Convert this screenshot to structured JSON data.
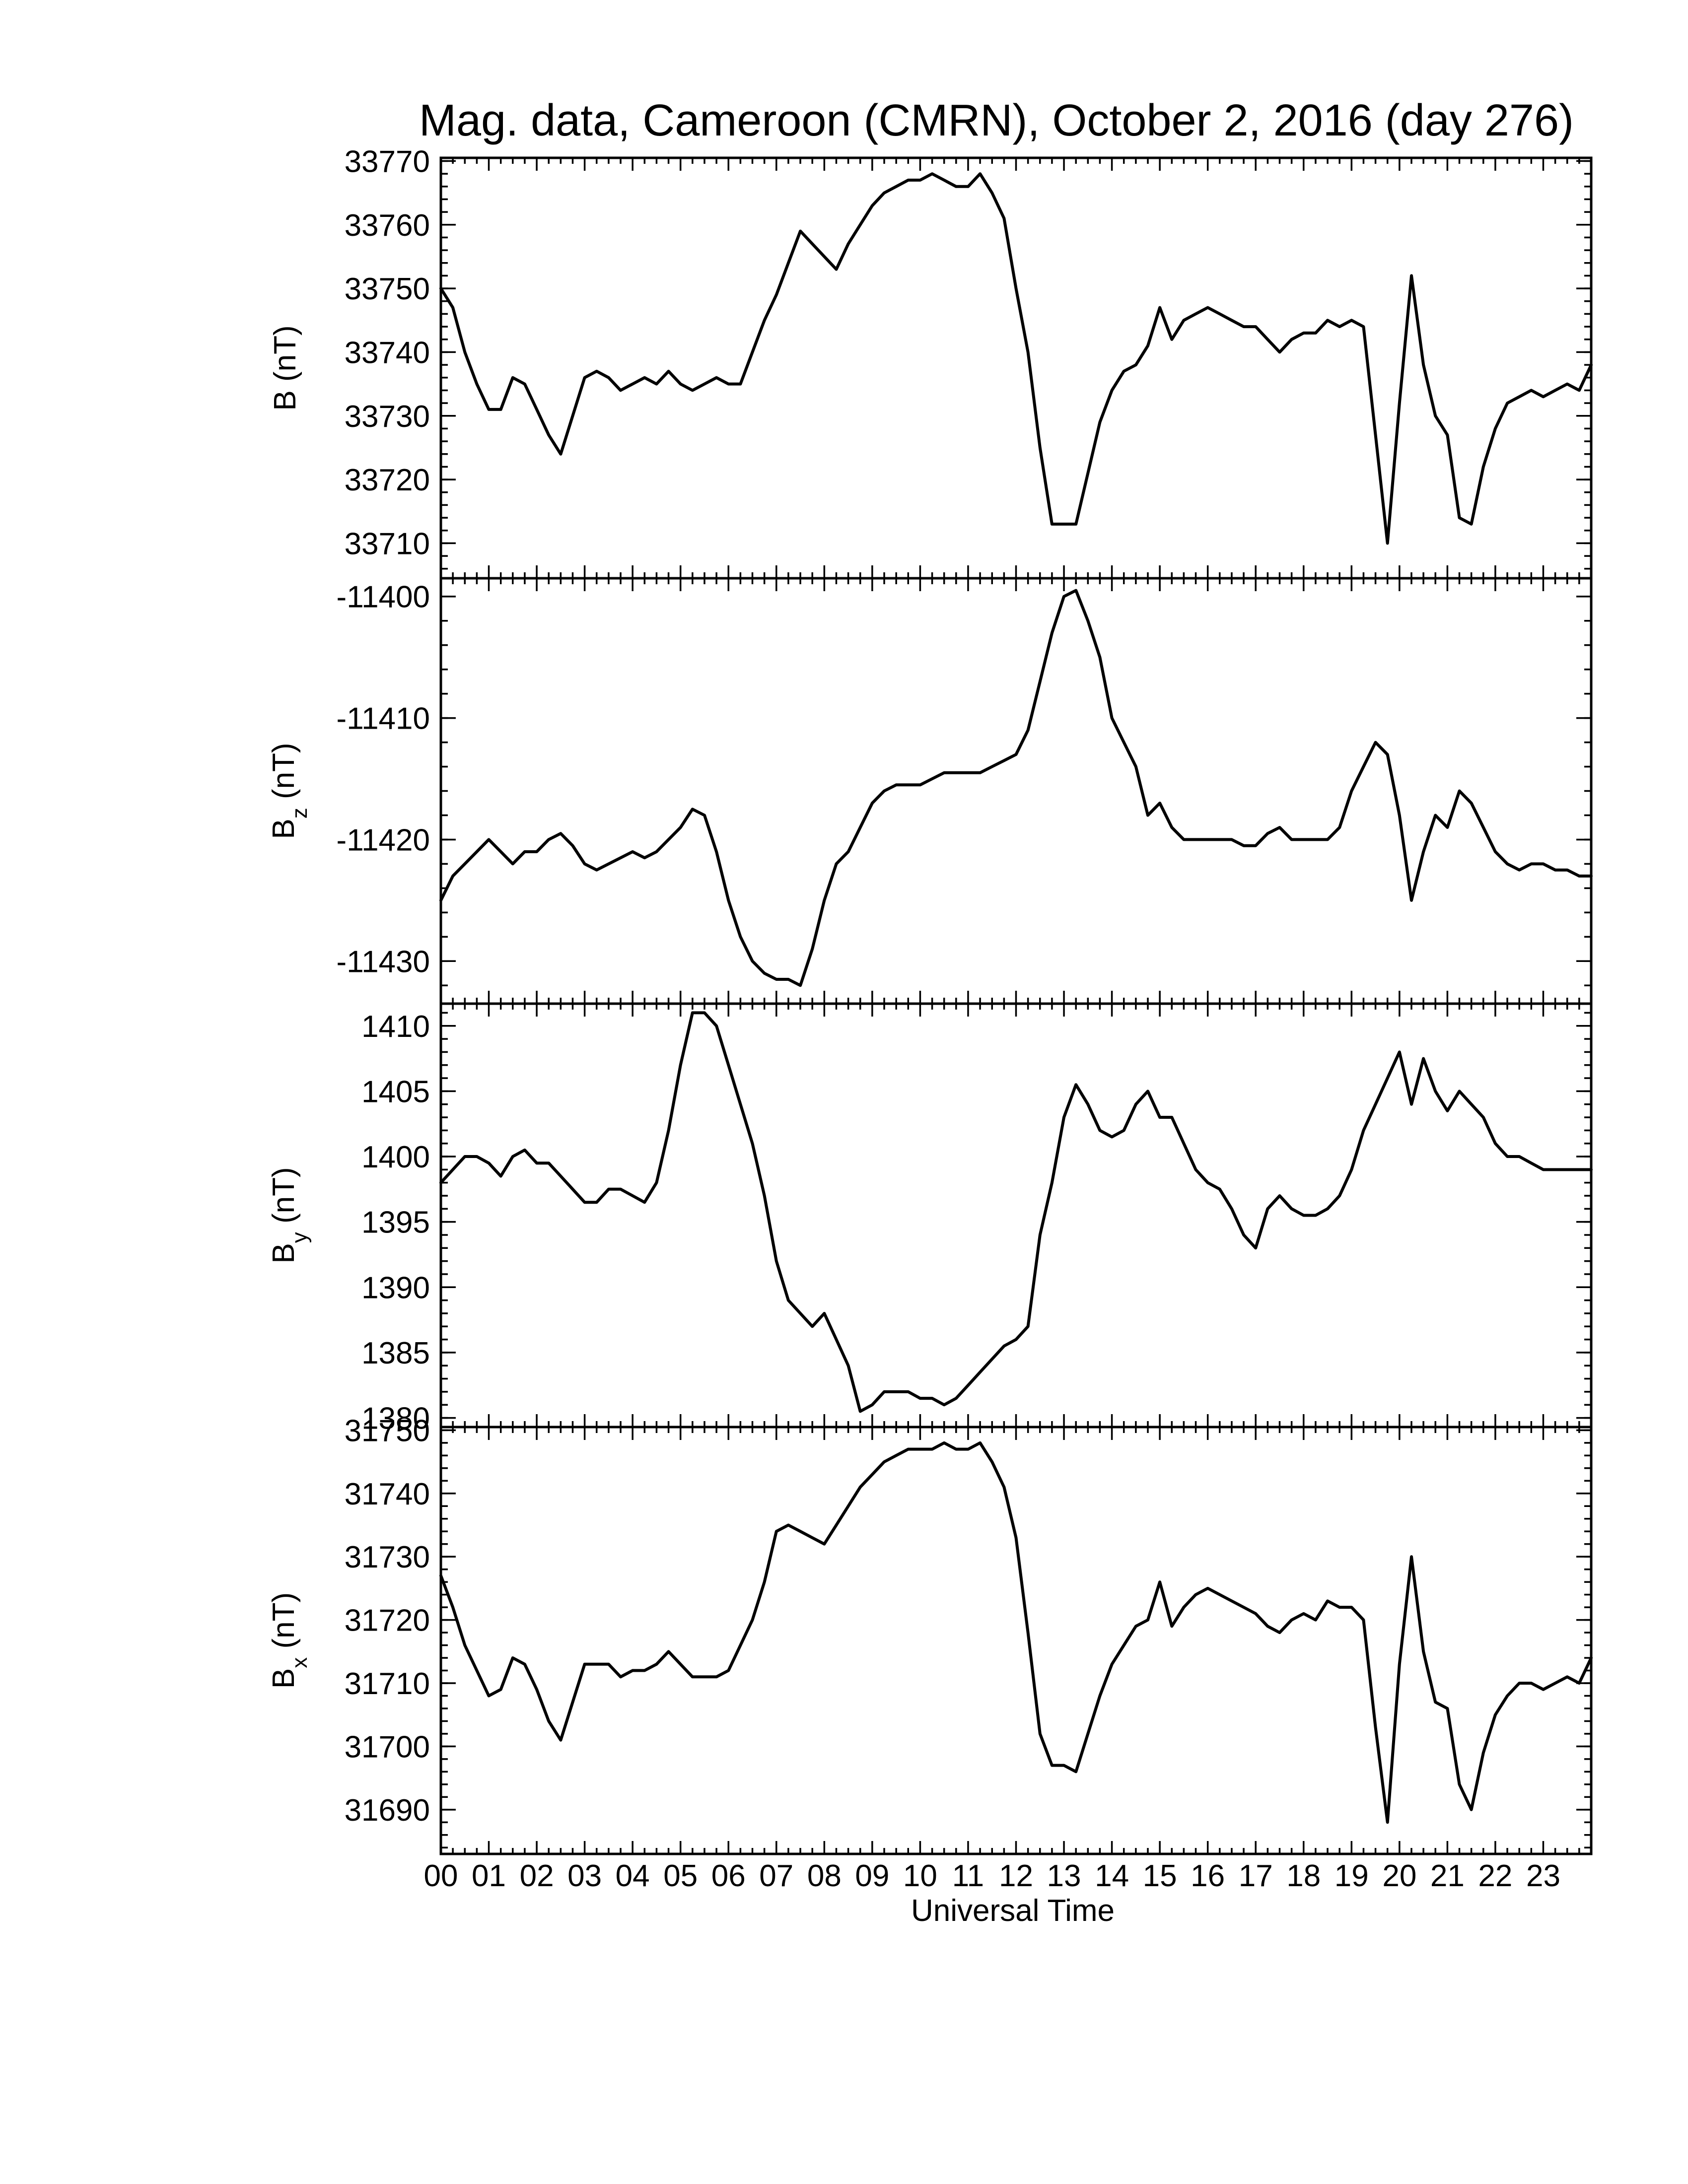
{
  "chart_data": {
    "type": "line",
    "title": "Mag. data, Cameroon (CMRN), October 2, 2016 (day 276)",
    "xlabel": "Universal Time",
    "x_unit": "hours UT",
    "xlim": [
      0,
      24
    ],
    "x_tick_labels": [
      "00",
      "01",
      "02",
      "03",
      "04",
      "05",
      "06",
      "07",
      "08",
      "09",
      "10",
      "11",
      "12",
      "13",
      "14",
      "15",
      "16",
      "17",
      "18",
      "19",
      "20",
      "21",
      "22",
      "23"
    ],
    "panels": [
      {
        "id": "B",
        "ylabel_main": "B",
        "ylabel_sub": "",
        "ylabel_unit": "(nT)",
        "ylim": [
          33704.5,
          33770.5
        ],
        "y_ticks": [
          33770,
          33760,
          33750,
          33740,
          33730,
          33720,
          33710
        ],
        "y_tick_labels": [
          "33770",
          "33760",
          "33750",
          "33740",
          "33730",
          "33720",
          "33710"
        ],
        "x": [
          0,
          0.25,
          0.5,
          0.75,
          1,
          1.25,
          1.5,
          1.75,
          2,
          2.25,
          2.5,
          2.75,
          3,
          3.25,
          3.5,
          3.75,
          4,
          4.25,
          4.5,
          4.75,
          5,
          5.25,
          5.5,
          5.75,
          6,
          6.25,
          6.5,
          6.75,
          7,
          7.25,
          7.5,
          7.75,
          8,
          8.25,
          8.5,
          8.75,
          9,
          9.25,
          9.5,
          9.75,
          10,
          10.25,
          10.5,
          10.75,
          11,
          11.25,
          11.5,
          11.75,
          12,
          12.25,
          12.5,
          12.75,
          13,
          13.25,
          13.5,
          13.75,
          14,
          14.25,
          14.5,
          14.75,
          15,
          15.25,
          15.5,
          15.75,
          16,
          16.25,
          16.5,
          16.75,
          17,
          17.25,
          17.5,
          17.75,
          18,
          18.25,
          18.5,
          18.75,
          19,
          19.25,
          19.5,
          19.75,
          20,
          20.25,
          20.5,
          20.75,
          21,
          21.25,
          21.5,
          21.75,
          22,
          22.25,
          22.5,
          22.75,
          23,
          23.25,
          23.5,
          23.75,
          24
        ],
        "y": [
          33750,
          33747,
          33740,
          33735,
          33731,
          33731,
          33736,
          33735,
          33731,
          33727,
          33724,
          33730,
          33736,
          33737,
          33736,
          33734,
          33735,
          33736,
          33735,
          33737,
          33735,
          33734,
          33735,
          33736,
          33735,
          33735,
          33740,
          33745,
          33749,
          33754,
          33759,
          33757,
          33755,
          33753,
          33757,
          33760,
          33763,
          33765,
          33766,
          33767,
          33767,
          33768,
          33767,
          33766,
          33766,
          33768,
          33765,
          33761,
          33750,
          33740,
          33725,
          33713,
          33713,
          33713,
          33721,
          33729,
          33734,
          33737,
          33738,
          33741,
          33747,
          33742,
          33745,
          33746,
          33747,
          33746,
          33745,
          33744,
          33744,
          33742,
          33740,
          33742,
          33743,
          33743,
          33745,
          33744,
          33745,
          33744,
          33727,
          33710,
          33732,
          33752,
          33738,
          33730,
          33727,
          33714,
          33713,
          33722,
          33728,
          33732,
          33733,
          33734,
          33733,
          33734,
          33735,
          33734,
          33738
        ]
      },
      {
        "id": "Bz",
        "ylabel_main": "B",
        "ylabel_sub": "z",
        "ylabel_unit": "(nT)",
        "ylim": [
          -11433.5,
          -11398.5
        ],
        "y_ticks": [
          -11400,
          -11410,
          -11420,
          -11430
        ],
        "y_tick_labels": [
          "-11400",
          "-11410",
          "-11420",
          "-11430"
        ],
        "x": [
          0,
          0.25,
          0.5,
          0.75,
          1,
          1.25,
          1.5,
          1.75,
          2,
          2.25,
          2.5,
          2.75,
          3,
          3.25,
          3.5,
          3.75,
          4,
          4.25,
          4.5,
          4.75,
          5,
          5.25,
          5.5,
          5.75,
          6,
          6.25,
          6.5,
          6.75,
          7,
          7.25,
          7.5,
          7.75,
          8,
          8.25,
          8.5,
          8.75,
          9,
          9.25,
          9.5,
          9.75,
          10,
          10.25,
          10.5,
          10.75,
          11,
          11.25,
          11.5,
          11.75,
          12,
          12.25,
          12.5,
          12.75,
          13,
          13.25,
          13.5,
          13.75,
          14,
          14.25,
          14.5,
          14.75,
          15,
          15.25,
          15.5,
          15.75,
          16,
          16.25,
          16.5,
          16.75,
          17,
          17.25,
          17.5,
          17.75,
          18,
          18.25,
          18.5,
          18.75,
          19,
          19.25,
          19.5,
          19.75,
          20,
          20.25,
          20.5,
          20.75,
          21,
          21.25,
          21.5,
          21.75,
          22,
          22.25,
          22.5,
          22.75,
          23,
          23.25,
          23.5,
          23.75,
          24
        ],
        "y": [
          -11425,
          -11423,
          -11422,
          -11421,
          -11420,
          -11421,
          -11422,
          -11421,
          -11421,
          -11420,
          -11419.5,
          -11420.5,
          -11422,
          -11422.5,
          -11422,
          -11421.5,
          -11421,
          -11421.5,
          -11421,
          -11420,
          -11419,
          -11417.5,
          -11418,
          -11421,
          -11425,
          -11428,
          -11430,
          -11431,
          -11431.5,
          -11431.5,
          -11432,
          -11429,
          -11425,
          -11422,
          -11421,
          -11419,
          -11417,
          -11416,
          -11415.5,
          -11415.5,
          -11415.5,
          -11415,
          -11414.5,
          -11414.5,
          -11414.5,
          -11414.5,
          -11414,
          -11413.5,
          -11413,
          -11411,
          -11407,
          -11403,
          -11400,
          -11399.5,
          -11402,
          -11405,
          -11410,
          -11412,
          -11414,
          -11418,
          -11417,
          -11419,
          -11420,
          -11420,
          -11420,
          -11420,
          -11420,
          -11420.5,
          -11420.5,
          -11419.5,
          -11419,
          -11420,
          -11420,
          -11420,
          -11420,
          -11419,
          -11416,
          -11414,
          -11412,
          -11413,
          -11418,
          -11425,
          -11421,
          -11418,
          -11419,
          -11416,
          -11417,
          -11419,
          -11421,
          -11422,
          -11422.5,
          -11422,
          -11422,
          -11422.5,
          -11422.5,
          -11423,
          -11423
        ]
      },
      {
        "id": "By",
        "ylabel_main": "B",
        "ylabel_sub": "y",
        "ylabel_unit": "(nT)",
        "ylim": [
          1379.3,
          1411.7
        ],
        "y_ticks": [
          1410,
          1405,
          1400,
          1395,
          1390,
          1385,
          1380
        ],
        "y_tick_labels": [
          "1410",
          "1405",
          "1400",
          "1395",
          "1390",
          "1385",
          "1380"
        ],
        "x": [
          0,
          0.25,
          0.5,
          0.75,
          1,
          1.25,
          1.5,
          1.75,
          2,
          2.25,
          2.5,
          2.75,
          3,
          3.25,
          3.5,
          3.75,
          4,
          4.25,
          4.5,
          4.75,
          5,
          5.25,
          5.5,
          5.75,
          6,
          6.25,
          6.5,
          6.75,
          7,
          7.25,
          7.5,
          7.75,
          8,
          8.25,
          8.5,
          8.75,
          9,
          9.25,
          9.5,
          9.75,
          10,
          10.25,
          10.5,
          10.75,
          11,
          11.25,
          11.5,
          11.75,
          12,
          12.25,
          12.5,
          12.75,
          13,
          13.25,
          13.5,
          13.75,
          14,
          14.25,
          14.5,
          14.75,
          15,
          15.25,
          15.5,
          15.75,
          16,
          16.25,
          16.5,
          16.75,
          17,
          17.25,
          17.5,
          17.75,
          18,
          18.25,
          18.5,
          18.75,
          19,
          19.25,
          19.5,
          19.75,
          20,
          20.25,
          20.5,
          20.75,
          21,
          21.25,
          21.5,
          21.75,
          22,
          22.25,
          22.5,
          22.75,
          23,
          23.25,
          23.5,
          23.75,
          24
        ],
        "y": [
          1398,
          1399,
          1400,
          1400,
          1399.5,
          1398.5,
          1400,
          1400.5,
          1399.5,
          1399.5,
          1398.5,
          1397.5,
          1396.5,
          1396.5,
          1397.5,
          1397.5,
          1397,
          1396.5,
          1398,
          1402,
          1407,
          1411,
          1411,
          1410,
          1407,
          1404,
          1401,
          1397,
          1392,
          1389,
          1388,
          1387,
          1388,
          1386,
          1384,
          1380.5,
          1381,
          1382,
          1382,
          1382,
          1381.5,
          1381.5,
          1381,
          1381.5,
          1382.5,
          1383.5,
          1384.5,
          1385.5,
          1386,
          1387,
          1394,
          1398,
          1403,
          1405.5,
          1404,
          1402,
          1401.5,
          1402,
          1404,
          1405,
          1403,
          1403,
          1401,
          1399,
          1398,
          1397.5,
          1396,
          1394,
          1393,
          1396,
          1397,
          1396,
          1395.5,
          1395.5,
          1396,
          1397,
          1399,
          1402,
          1404,
          1406,
          1408,
          1404,
          1407.5,
          1405,
          1403.5,
          1405,
          1404,
          1403,
          1401,
          1400,
          1400,
          1399.5,
          1399,
          1399,
          1399,
          1399,
          1399
        ]
      },
      {
        "id": "Bx",
        "ylabel_main": "B",
        "ylabel_sub": "x",
        "ylabel_unit": "(nT)",
        "ylim": [
          31683,
          31750.5
        ],
        "y_ticks": [
          31750,
          31740,
          31730,
          31720,
          31710,
          31700,
          31690
        ],
        "y_tick_labels": [
          "31750",
          "31740",
          "31730",
          "31720",
          "31710",
          "31700",
          "31690"
        ],
        "x": [
          0,
          0.25,
          0.5,
          0.75,
          1,
          1.25,
          1.5,
          1.75,
          2,
          2.25,
          2.5,
          2.75,
          3,
          3.25,
          3.5,
          3.75,
          4,
          4.25,
          4.5,
          4.75,
          5,
          5.25,
          5.5,
          5.75,
          6,
          6.25,
          6.5,
          6.75,
          7,
          7.25,
          7.5,
          7.75,
          8,
          8.25,
          8.5,
          8.75,
          9,
          9.25,
          9.5,
          9.75,
          10,
          10.25,
          10.5,
          10.75,
          11,
          11.25,
          11.5,
          11.75,
          12,
          12.25,
          12.5,
          12.75,
          13,
          13.25,
          13.5,
          13.75,
          14,
          14.25,
          14.5,
          14.75,
          15,
          15.25,
          15.5,
          15.75,
          16,
          16.25,
          16.5,
          16.75,
          17,
          17.25,
          17.5,
          17.75,
          18,
          18.25,
          18.5,
          18.75,
          19,
          19.25,
          19.5,
          19.75,
          20,
          20.25,
          20.5,
          20.75,
          21,
          21.25,
          21.5,
          21.75,
          22,
          22.25,
          22.5,
          22.75,
          23,
          23.25,
          23.5,
          23.75,
          24
        ],
        "y": [
          31727,
          31722,
          31716,
          31712,
          31708,
          31709,
          31714,
          31713,
          31709,
          31704,
          31701,
          31707,
          31713,
          31713,
          31713,
          31711,
          31712,
          31712,
          31713,
          31715,
          31713,
          31711,
          31711,
          31711,
          31712,
          31716,
          31720,
          31726,
          31734,
          31735,
          31734,
          31733,
          31732,
          31735,
          31738,
          31741,
          31743,
          31745,
          31746,
          31747,
          31747,
          31747,
          31748,
          31747,
          31747,
          31748,
          31745,
          31741,
          31733,
          31718,
          31702,
          31697,
          31697,
          31696,
          31702,
          31708,
          31713,
          31716,
          31719,
          31720,
          31726,
          31719,
          31722,
          31724,
          31725,
          31724,
          31723,
          31722,
          31721,
          31719,
          31718,
          31720,
          31721,
          31720,
          31723,
          31722,
          31722,
          31720,
          31703,
          31688,
          31713,
          31730,
          31715,
          31707,
          31706,
          31694,
          31690,
          31699,
          31705,
          31708,
          31710,
          31710,
          31709,
          31710,
          31711,
          31710,
          31714
        ]
      }
    ]
  }
}
